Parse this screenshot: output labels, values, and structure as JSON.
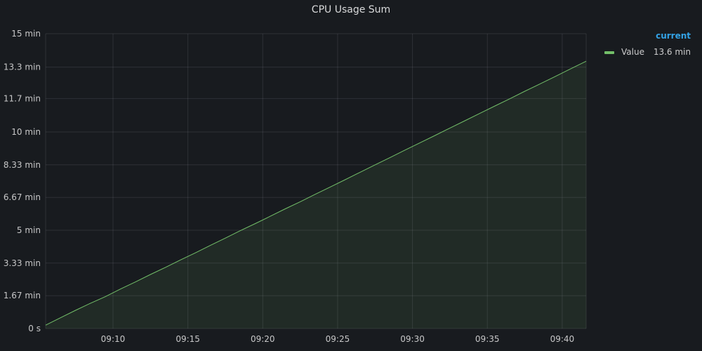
{
  "chart_data": {
    "type": "area",
    "title": "CPU Usage Sum",
    "xlabel": "",
    "ylabel": "",
    "grid": true,
    "legend_placement": "right",
    "x_tick_labels": [
      "09:10",
      "09:15",
      "09:20",
      "09:25",
      "09:30",
      "09:35",
      "09:40"
    ],
    "x_tick_minutes": [
      10,
      15,
      20,
      25,
      30,
      35,
      40
    ],
    "y_ticks": [
      {
        "value": 0,
        "label": "0 s"
      },
      {
        "value": 1.67,
        "label": "1.67 min"
      },
      {
        "value": 3.33,
        "label": "3.33 min"
      },
      {
        "value": 5,
        "label": "5 min"
      },
      {
        "value": 6.67,
        "label": "6.67 min"
      },
      {
        "value": 8.33,
        "label": "8.33 min"
      },
      {
        "value": 10,
        "label": "10 min"
      },
      {
        "value": 11.7,
        "label": "11.7 min"
      },
      {
        "value": 13.3,
        "label": "13.3 min"
      },
      {
        "value": 15,
        "label": "15 min"
      }
    ],
    "ylim": [
      0,
      15
    ],
    "xlim_minutes": [
      5.5,
      41.6
    ],
    "legend_header": "current",
    "series": [
      {
        "name": "Value",
        "color": "#73bf69",
        "current_label": "13.6 min",
        "x_minutes": [
          5.5,
          6.5,
          7.5,
          8.5,
          9.5,
          10.5,
          11.5,
          12.5,
          13.5,
          14.5,
          15.5,
          16.5,
          17.5,
          18.5,
          19.5,
          20.5,
          21.5,
          22.5,
          23.5,
          24.5,
          25.5,
          26.5,
          27.5,
          28.5,
          29.5,
          30.5,
          31.5,
          32.5,
          33.5,
          34.5,
          35.5,
          36.5,
          37.5,
          38.5,
          39.5,
          40.5,
          41.6
        ],
        "values": [
          0.17,
          0.55,
          0.93,
          1.29,
          1.63,
          2.01,
          2.37,
          2.75,
          3.11,
          3.49,
          3.85,
          4.23,
          4.6,
          4.98,
          5.34,
          5.71,
          6.09,
          6.45,
          6.83,
          7.2,
          7.57,
          7.95,
          8.33,
          8.7,
          9.08,
          9.45,
          9.82,
          10.2,
          10.57,
          10.95,
          11.32,
          11.69,
          12.07,
          12.44,
          12.81,
          13.19,
          13.6
        ]
      }
    ]
  }
}
